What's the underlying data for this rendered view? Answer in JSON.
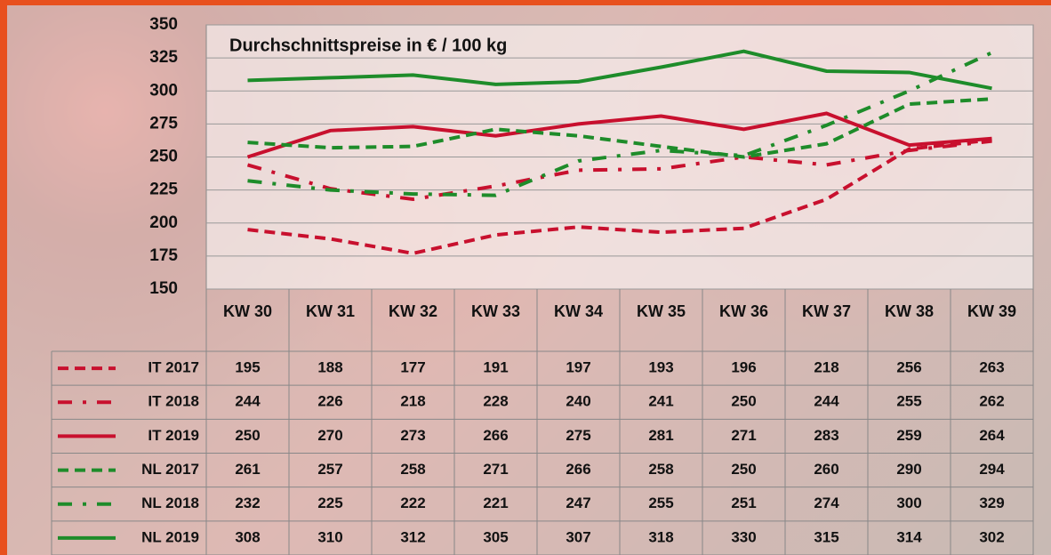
{
  "chart_data": {
    "type": "line",
    "title": "Durchschnittspreise in € / 100 kg",
    "categories": [
      "KW 30",
      "KW 31",
      "KW 32",
      "KW 33",
      "KW 34",
      "KW 35",
      "KW 36",
      "KW 37",
      "KW 38",
      "KW 39"
    ],
    "ylim": [
      150,
      350
    ],
    "yticks": [
      150,
      175,
      200,
      225,
      250,
      275,
      300,
      325,
      350
    ],
    "grid": true,
    "series": [
      {
        "name": "IT 2017",
        "color": "#c8102e",
        "style": "dashed",
        "values": [
          195,
          188,
          177,
          191,
          197,
          193,
          196,
          218,
          256,
          263
        ]
      },
      {
        "name": "IT 2018",
        "color": "#c8102e",
        "style": "dashdot",
        "values": [
          244,
          226,
          218,
          228,
          240,
          241,
          250,
          244,
          255,
          262
        ]
      },
      {
        "name": "IT 2019",
        "color": "#c8102e",
        "style": "solid",
        "values": [
          250,
          270,
          273,
          266,
          275,
          281,
          271,
          283,
          259,
          264
        ]
      },
      {
        "name": "NL 2017",
        "color": "#1e8c2a",
        "style": "dashed",
        "values": [
          261,
          257,
          258,
          271,
          266,
          258,
          250,
          260,
          290,
          294
        ]
      },
      {
        "name": "NL 2018",
        "color": "#1e8c2a",
        "style": "dashdot",
        "values": [
          232,
          225,
          222,
          221,
          247,
          255,
          251,
          274,
          300,
          329
        ]
      },
      {
        "name": "NL 2019",
        "color": "#1e8c2a",
        "style": "solid",
        "values": [
          308,
          310,
          312,
          305,
          307,
          318,
          330,
          315,
          314,
          302
        ]
      }
    ]
  }
}
